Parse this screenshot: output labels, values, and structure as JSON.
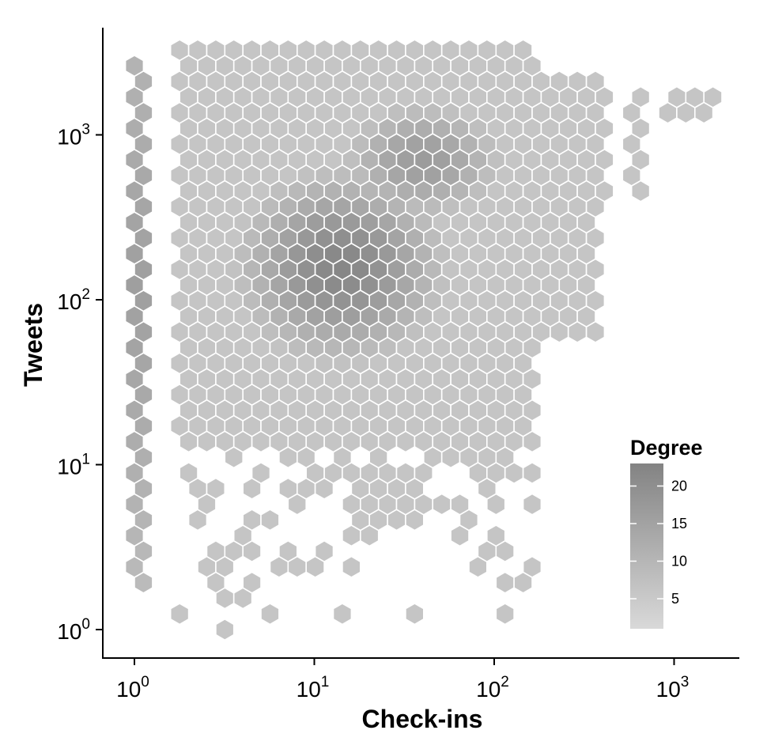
{
  "chart_data": {
    "type": "hexbin",
    "title": "",
    "xlabel": "Check-ins",
    "ylabel": "Tweets",
    "x_scale": "log10",
    "y_scale": "log10",
    "xlim": [
      0.6,
      2200
    ],
    "ylim": [
      0.55,
      6000
    ],
    "x_ticks": [
      {
        "value": 1,
        "base": "10",
        "exp": "0"
      },
      {
        "value": 10,
        "base": "10",
        "exp": "1"
      },
      {
        "value": 100,
        "base": "10",
        "exp": "2"
      },
      {
        "value": 1000,
        "base": "10",
        "exp": "3"
      }
    ],
    "y_ticks": [
      {
        "value": 1,
        "base": "10",
        "exp": "0"
      },
      {
        "value": 10,
        "base": "10",
        "exp": "1"
      },
      {
        "value": 100,
        "base": "10",
        "exp": "2"
      },
      {
        "value": 1000,
        "base": "10",
        "exp": "3"
      }
    ],
    "grid": false,
    "legend": {
      "title": "Degree",
      "placement": "bottom-right inside plot",
      "range": [
        1,
        23
      ],
      "ticks": [
        5,
        10,
        15,
        20
      ],
      "color_low": "#d9d9d9",
      "color_high": "#838383"
    },
    "hex_outline_color": "#ffffff",
    "density_note_points": [
      {
        "x": 14,
        "y": 160,
        "degree": 22
      },
      {
        "x": 40,
        "y": 700,
        "degree": 18
      },
      {
        "x": 1.3,
        "y": 120,
        "degree": 16
      }
    ]
  }
}
